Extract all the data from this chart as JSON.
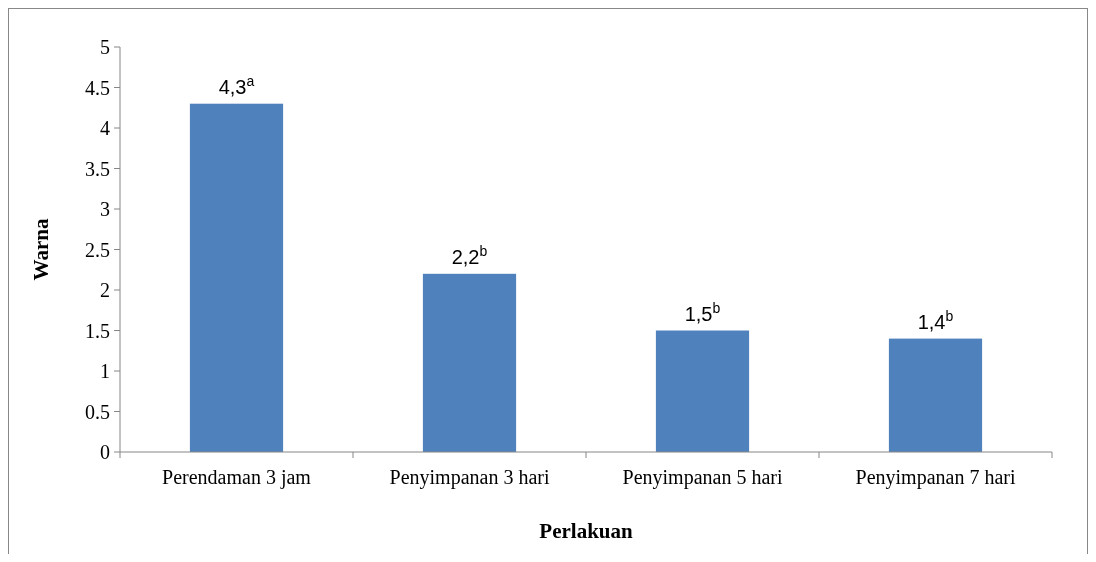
{
  "chart_data": {
    "type": "bar",
    "xlabel": "Perlakuan",
    "ylabel": "Warna",
    "categories": [
      "Perendaman 3 jam",
      "Penyimpanan 3 hari",
      "Penyimpanan 5 hari",
      "Penyimpanan 7 hari"
    ],
    "values": [
      4.3,
      2.2,
      1.5,
      1.4
    ],
    "color": "#4f81bd",
    "value_labels": [
      "4,3$^{a}$",
      "2,2$^{b}$",
      "1,5$^{b}$",
      "1,4$^{b}$"
    ],
    "ylim": [
      0,
      5
    ],
    "yticks": [
      0,
      0.5,
      1,
      1.5,
      2,
      2.5,
      3,
      3.5,
      4,
      4.5,
      5
    ],
    "grid": false
  }
}
